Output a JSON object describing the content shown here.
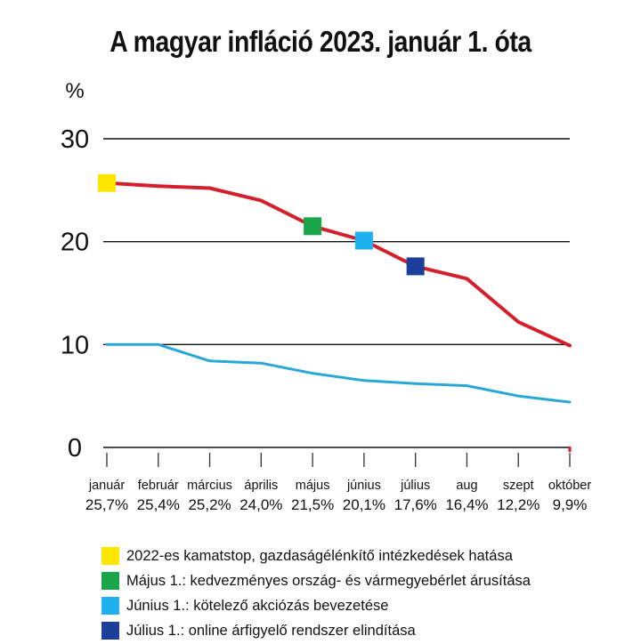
{
  "chart_data": {
    "type": "line",
    "title": "A magyar infláció 2023. január 1. óta",
    "ylabel": "%",
    "ylim": [
      0,
      30
    ],
    "yticks": [
      "0",
      "10",
      "20",
      "30"
    ],
    "categories": [
      "január",
      "február",
      "március",
      "április",
      "május",
      "június",
      "július",
      "aug",
      "szept",
      "október"
    ],
    "value_labels": [
      "25,7%",
      "25,4%",
      "25,2%",
      "24,0%",
      "21,5%",
      "20,1%",
      "17,6%",
      "16,4%",
      "12,2%",
      "9,9%"
    ],
    "series": [
      {
        "color": "#d4202c",
        "values": [
          25.7,
          25.4,
          25.2,
          24.0,
          21.5,
          20.1,
          17.6,
          16.4,
          12.2,
          9.9
        ]
      },
      {
        "color": "#29a8d8",
        "values": [
          10.0,
          10.0,
          8.4,
          8.2,
          7.2,
          6.5,
          6.2,
          6.0,
          5.0,
          4.4
        ]
      }
    ],
    "markers": [
      {
        "index": 0,
        "color": "#ffe600"
      },
      {
        "index": 4,
        "color": "#1aa54a"
      },
      {
        "index": 5,
        "color": "#1eb2ee"
      },
      {
        "index": 6,
        "color": "#1b3f9a"
      }
    ],
    "grid": true
  },
  "legend": [
    {
      "color": "#ffe600",
      "text": "2022-es kamatstop, gazdaságélénkítő intézkedések hatása"
    },
    {
      "color": "#1aa54a",
      "text": "Május 1.: kedvezményes ország- és vármegyebérlet árusítása"
    },
    {
      "color": "#1eb2ee",
      "text": "Június 1.: kötelező akciózás bevezetése"
    },
    {
      "color": "#1b3f9a",
      "text": "Július 1.: online árfigyelő rendszer elindítása"
    }
  ]
}
